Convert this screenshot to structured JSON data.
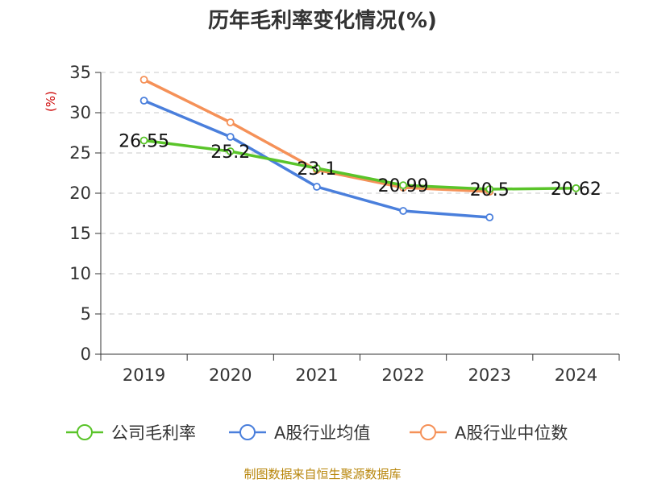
{
  "chart_data": {
    "type": "line",
    "title": "历年毛利率变化情况(%)",
    "ylabel": "(%)",
    "categories": [
      "2019",
      "2020",
      "2021",
      "2022",
      "2023",
      "2024"
    ],
    "ylim": [
      0,
      35
    ],
    "yticks": [
      "0",
      "5",
      "10",
      "15",
      "20",
      "25",
      "30",
      "35"
    ],
    "grid": true,
    "legend_position": "bottom",
    "series": [
      {
        "name": "公司毛利率",
        "color": "#5ac42a",
        "values": [
          26.55,
          25.2,
          23.1,
          20.99,
          20.5,
          20.62
        ],
        "labels": [
          "26.55",
          "25.2",
          "23.1",
          "20.99",
          "20.5",
          "20.62"
        ]
      },
      {
        "name": "A股行业均值",
        "color": "#4a7fdc",
        "values": [
          31.5,
          27.0,
          20.8,
          17.8,
          17.0,
          null
        ],
        "labels": null
      },
      {
        "name": "A股行业中位数",
        "color": "#f59158",
        "values": [
          34.1,
          28.8,
          22.9,
          20.7,
          20.2,
          null
        ],
        "labels": null
      }
    ]
  },
  "source": "制图数据来自恒生聚源数据库"
}
